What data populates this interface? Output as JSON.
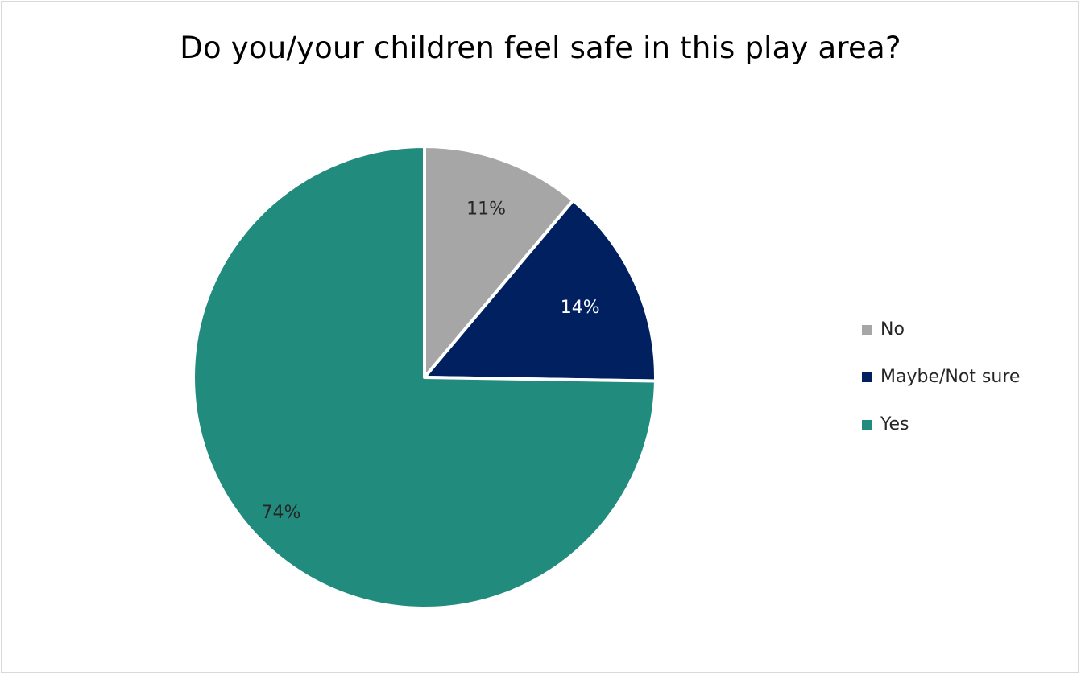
{
  "chart_data": {
    "type": "pie",
    "title": "Do you/your children feel safe in this play area?",
    "slices": [
      {
        "label": "No",
        "value": 11,
        "value_label": "11%",
        "color": "#a6a6a6",
        "label_color": "#262626"
      },
      {
        "label": "Maybe/Not sure",
        "value": 14,
        "value_label": "14%",
        "color": "#002060",
        "label_color": "#ffffff"
      },
      {
        "label": "Yes",
        "value": 74,
        "value_label": "74%",
        "color": "#218c7e",
        "label_color": "#262626"
      }
    ],
    "legend_position": "right",
    "start_angle": "12 o'clock",
    "direction": "clockwise"
  }
}
